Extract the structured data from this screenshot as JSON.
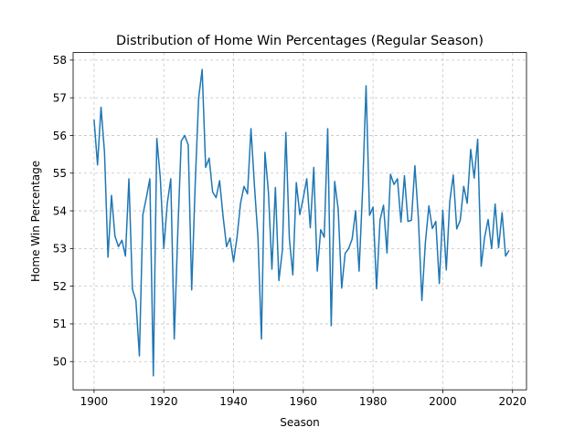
{
  "chart_data": {
    "type": "line",
    "title": "Distribution of Home Win Percentages (Regular Season)",
    "xlabel": "Season",
    "ylabel": "Home Win Percentage",
    "xlim": [
      1894,
      2024
    ],
    "ylim": [
      49.25,
      58.2
    ],
    "xticks": [
      1900,
      1920,
      1940,
      1960,
      1980,
      2000,
      2020
    ],
    "yticks": [
      50,
      51,
      52,
      53,
      54,
      55,
      56,
      57,
      58
    ],
    "grid": true,
    "series": [
      {
        "color": "#1f77b4",
        "x": [
          1900,
          1901,
          1902,
          1903,
          1904,
          1905,
          1906,
          1907,
          1908,
          1909,
          1910,
          1911,
          1912,
          1913,
          1914,
          1915,
          1916,
          1917,
          1918,
          1919,
          1920,
          1921,
          1922,
          1923,
          1924,
          1925,
          1926,
          1927,
          1928,
          1929,
          1930,
          1931,
          1932,
          1933,
          1934,
          1935,
          1936,
          1937,
          1938,
          1939,
          1940,
          1941,
          1942,
          1943,
          1944,
          1945,
          1946,
          1947,
          1948,
          1949,
          1950,
          1951,
          1952,
          1953,
          1954,
          1955,
          1956,
          1957,
          1958,
          1959,
          1960,
          1961,
          1962,
          1963,
          1964,
          1965,
          1966,
          1967,
          1968,
          1969,
          1970,
          1971,
          1972,
          1973,
          1974,
          1975,
          1976,
          1977,
          1978,
          1979,
          1980,
          1981,
          1982,
          1983,
          1984,
          1985,
          1986,
          1987,
          1988,
          1989,
          1990,
          1991,
          1992,
          1993,
          1994,
          1995,
          1996,
          1997,
          1998,
          1999,
          2000,
          2001,
          2002,
          2003,
          2004,
          2005,
          2006,
          2007,
          2008,
          2009,
          2010,
          2011,
          2012,
          2013,
          2014,
          2015,
          2016,
          2017,
          2018,
          2019
        ],
        "y": [
          56.42,
          55.22,
          56.75,
          55.55,
          52.77,
          54.41,
          53.33,
          53.05,
          53.22,
          52.8,
          54.85,
          51.92,
          51.62,
          50.15,
          53.9,
          54.35,
          54.85,
          49.62,
          55.92,
          54.87,
          53.0,
          54.2,
          54.85,
          50.6,
          53.4,
          55.85,
          56.0,
          55.75,
          51.9,
          54.7,
          57.0,
          57.75,
          55.15,
          55.4,
          54.5,
          54.35,
          54.8,
          53.85,
          53.05,
          53.28,
          52.65,
          53.3,
          54.2,
          54.65,
          54.45,
          56.18,
          54.65,
          53.3,
          50.6,
          55.55,
          54.5,
          52.45,
          54.62,
          52.15,
          52.95,
          56.08,
          53.27,
          52.3,
          54.75,
          53.9,
          54.35,
          54.85,
          53.55,
          55.15,
          52.4,
          53.5,
          53.3,
          56.18,
          50.95,
          54.78,
          54.05,
          51.95,
          52.87,
          53.0,
          53.25,
          54.0,
          52.4,
          54.55,
          57.32,
          53.88,
          54.1,
          51.93,
          53.75,
          54.15,
          52.88,
          54.97,
          54.7,
          54.85,
          53.7,
          54.93,
          53.72,
          53.75,
          55.2,
          53.8,
          51.62,
          53.15,
          54.13,
          53.53,
          53.72,
          52.07,
          54.02,
          52.43,
          54.25,
          54.95,
          53.52,
          53.75,
          54.65,
          54.2,
          55.63,
          54.87,
          55.9,
          52.53,
          53.3,
          53.77,
          53.0,
          54.18,
          53.02,
          53.95,
          52.8,
          52.95
        ]
      }
    ]
  }
}
